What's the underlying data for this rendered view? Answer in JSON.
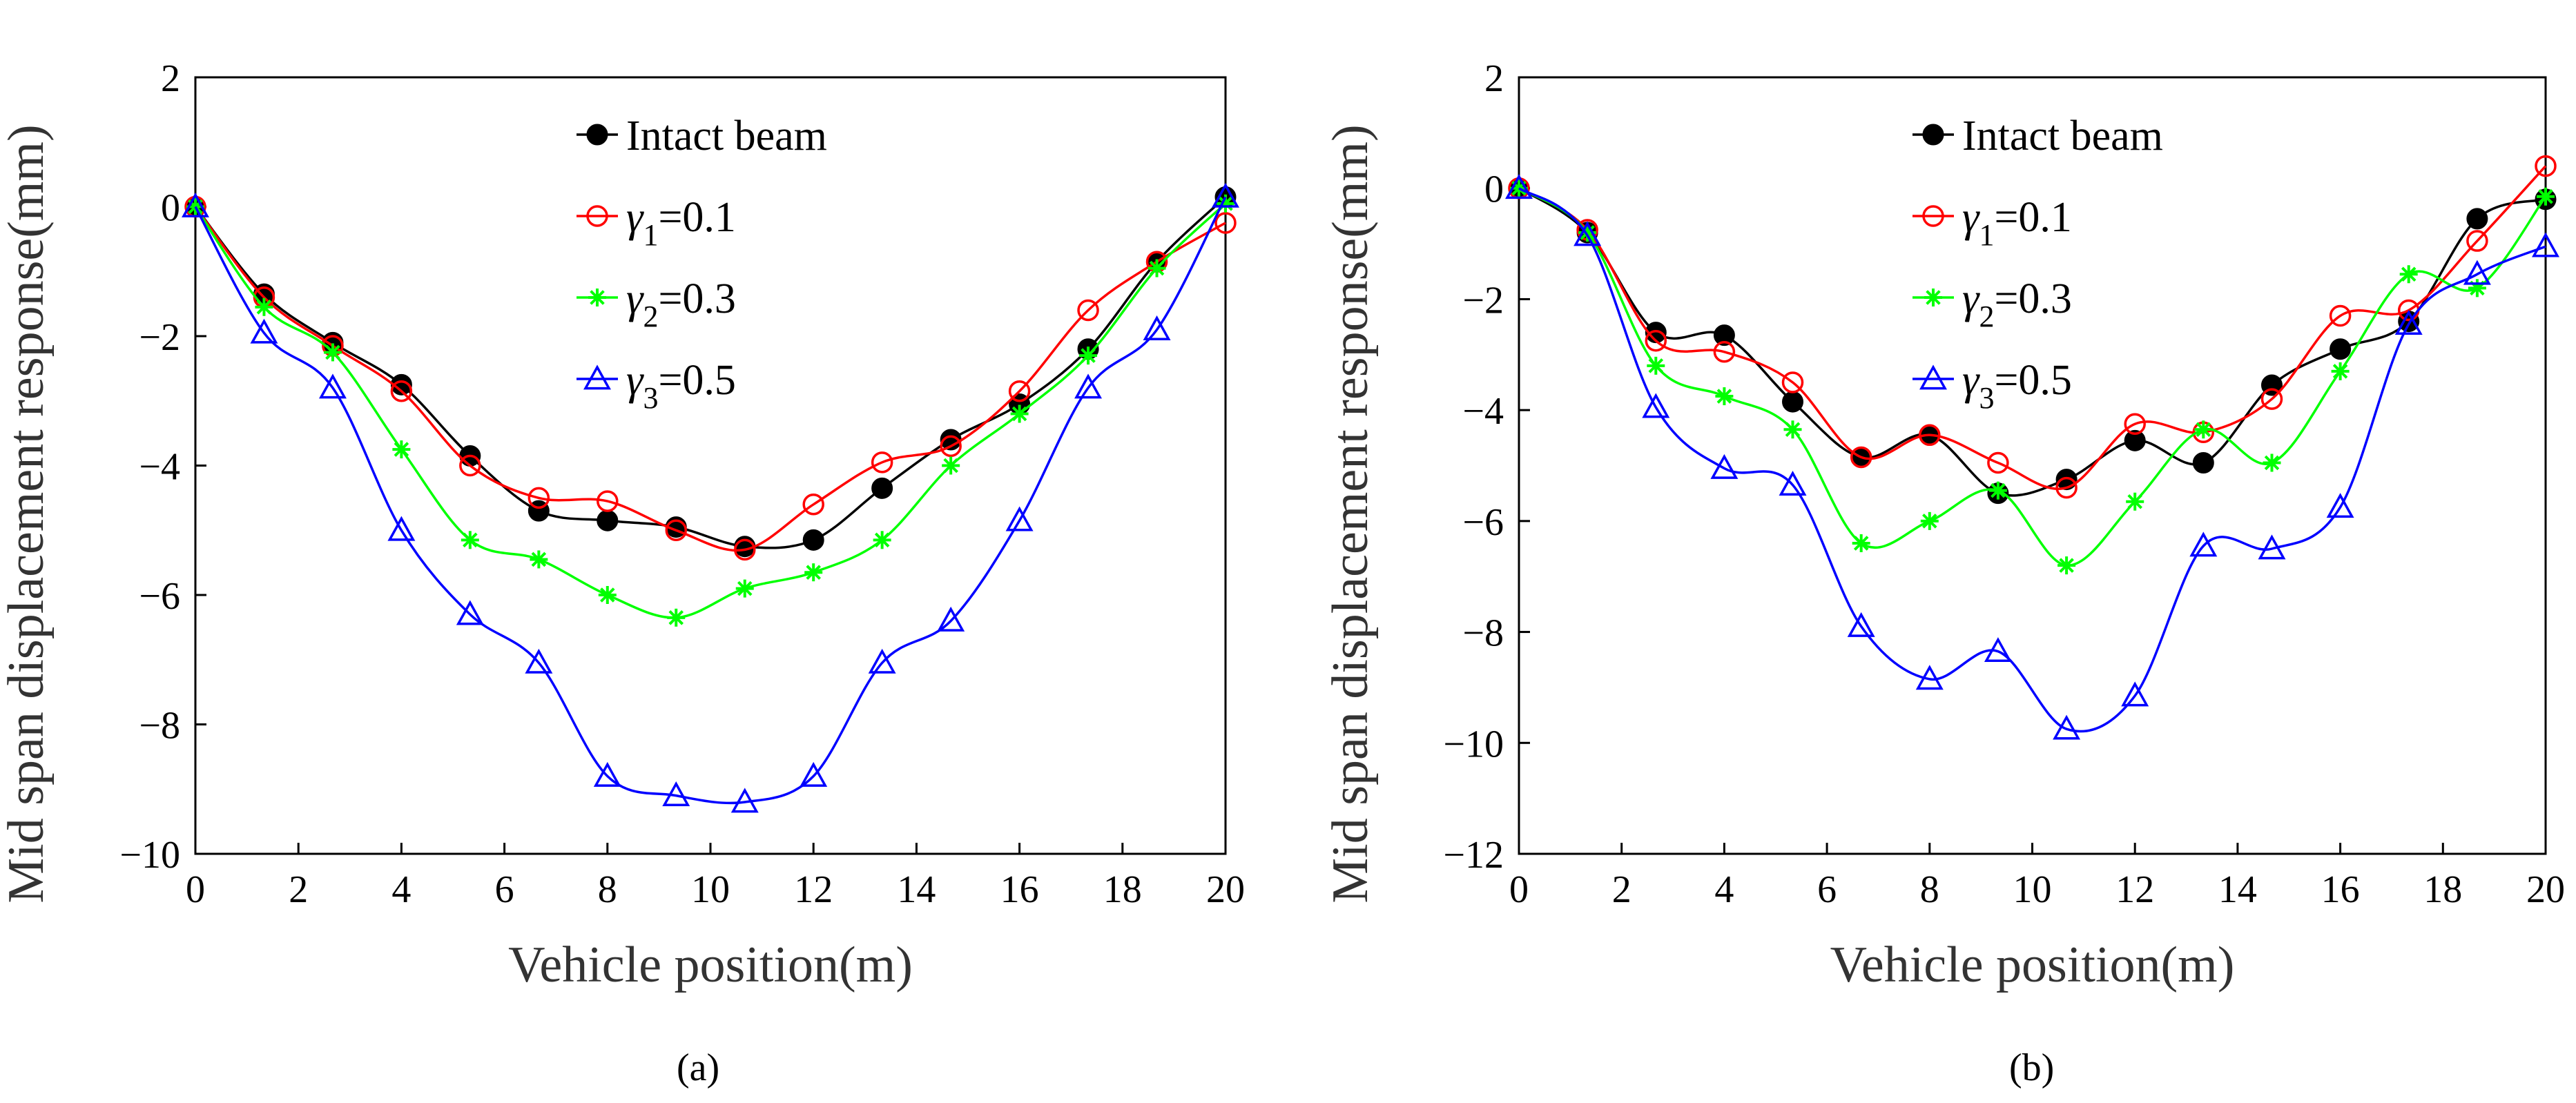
{
  "chart_data": [
    {
      "type": "line",
      "panel": "a",
      "panel_label": "(a)",
      "xlabel": "Vehicle position(m)",
      "ylabel": "Mid span displacement response(mm)",
      "xlim": [
        0,
        20
      ],
      "ylim": [
        -10,
        2
      ],
      "xticks": [
        0,
        2,
        4,
        6,
        8,
        10,
        12,
        14,
        16,
        18,
        20
      ],
      "yticks": [
        2,
        0,
        -2,
        -4,
        -6,
        -8,
        -10
      ],
      "legend": "top-center",
      "marker_x": [
        0,
        1.333,
        2.667,
        4.0,
        5.333,
        6.667,
        8.0,
        9.333,
        10.667,
        12.0,
        13.333,
        14.667,
        16.0,
        17.333,
        18.667,
        20.0
      ],
      "series": [
        {
          "name": "Intact beam",
          "label_prefix": "Intact beam",
          "label_sub": "",
          "label_suffix": "",
          "color": "#000000",
          "marker": "filled-circle",
          "values": [
            0,
            -1.35,
            -2.1,
            -2.75,
            -3.85,
            -4.7,
            -4.85,
            -4.95,
            -5.25,
            -5.15,
            -4.35,
            -3.6,
            -3.05,
            -2.2,
            -0.85,
            0.15
          ]
        },
        {
          "name": "γ1=0.1",
          "label_prefix": "γ",
          "label_sub": "1",
          "label_suffix": "=0.1",
          "color": "#ff0000",
          "marker": "open-circle",
          "values": [
            0,
            -1.4,
            -2.15,
            -2.85,
            -4.0,
            -4.5,
            -4.55,
            -5.0,
            -5.3,
            -4.6,
            -3.95,
            -3.7,
            -2.85,
            -1.6,
            -0.85,
            -0.25
          ]
        },
        {
          "name": "γ2=0.3",
          "label_prefix": "γ",
          "label_sub": "2",
          "label_suffix": "=0.3",
          "color": "#00ff00",
          "marker": "asterisk",
          "values": [
            0,
            -1.55,
            -2.25,
            -3.75,
            -5.15,
            -5.45,
            -6.0,
            -6.35,
            -5.9,
            -5.65,
            -5.15,
            -4.0,
            -3.2,
            -2.3,
            -0.95,
            0.05
          ]
        },
        {
          "name": "γ3=0.5",
          "label_prefix": "γ",
          "label_sub": "3",
          "label_suffix": "=0.5",
          "color": "#0000ff",
          "marker": "open-triangle",
          "values": [
            0,
            -1.95,
            -2.8,
            -5.0,
            -6.3,
            -7.05,
            -8.8,
            -9.1,
            -9.2,
            -8.8,
            -7.05,
            -6.4,
            -4.85,
            -2.8,
            -1.9,
            0.15
          ]
        }
      ]
    },
    {
      "type": "line",
      "panel": "b",
      "panel_label": "(b)",
      "xlabel": "Vehicle position(m)",
      "ylabel": "Mid span displacement response(mm)",
      "xlim": [
        0,
        20
      ],
      "ylim": [
        -12,
        2
      ],
      "xticks": [
        0,
        2,
        4,
        6,
        8,
        10,
        12,
        14,
        16,
        18,
        20
      ],
      "yticks": [
        2,
        0,
        -2,
        -4,
        -6,
        -8,
        -10,
        -12
      ],
      "legend": "top-center",
      "marker_x": [
        0,
        1.333,
        2.667,
        4.0,
        5.333,
        6.667,
        8.0,
        9.333,
        10.667,
        12.0,
        13.333,
        14.667,
        16.0,
        17.333,
        18.667,
        20.0
      ],
      "series": [
        {
          "name": "Intact beam",
          "label_prefix": "Intact beam",
          "label_sub": "",
          "label_suffix": "",
          "color": "#000000",
          "marker": "filled-circle",
          "values": [
            0,
            -0.8,
            -2.6,
            -2.65,
            -3.85,
            -4.85,
            -4.45,
            -5.5,
            -5.25,
            -4.55,
            -4.95,
            -3.55,
            -2.9,
            -2.4,
            -0.55,
            -0.2
          ]
        },
        {
          "name": "γ1=0.1",
          "label_prefix": "γ",
          "label_sub": "1",
          "label_suffix": "=0.1",
          "color": "#ff0000",
          "marker": "open-circle",
          "values": [
            0,
            -0.75,
            -2.75,
            -2.95,
            -3.5,
            -4.85,
            -4.45,
            -4.95,
            -5.4,
            -4.25,
            -4.4,
            -3.8,
            -2.3,
            -2.2,
            -0.95,
            0.4
          ]
        },
        {
          "name": "γ2=0.3",
          "label_prefix": "γ",
          "label_sub": "2",
          "label_suffix": "=0.3",
          "color": "#00ff00",
          "marker": "asterisk",
          "values": [
            0,
            -0.8,
            -3.2,
            -3.75,
            -4.35,
            -6.4,
            -6.0,
            -5.45,
            -6.8,
            -5.65,
            -4.35,
            -4.95,
            -3.3,
            -1.55,
            -1.8,
            -0.15
          ]
        },
        {
          "name": "γ3=0.5",
          "label_prefix": "γ",
          "label_sub": "3",
          "label_suffix": "=0.5",
          "color": "#0000ff",
          "marker": "open-triangle",
          "values": [
            0,
            -0.85,
            -3.95,
            -5.05,
            -5.35,
            -7.9,
            -8.85,
            -8.35,
            -9.75,
            -9.15,
            -6.45,
            -6.5,
            -5.75,
            -2.45,
            -1.55,
            -1.05
          ]
        }
      ]
    }
  ]
}
